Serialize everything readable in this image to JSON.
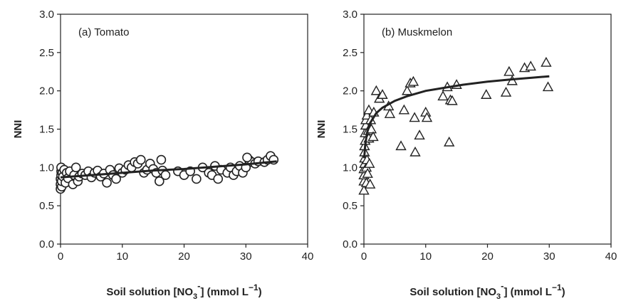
{
  "chart_data": [
    {
      "type": "scatter",
      "panel": "a",
      "annotation": "(a) Tomato",
      "ylabel": "NNI",
      "xlabel": {
        "prefix": "Soil solution [NO",
        "sub": "3",
        "sup": "-",
        "suffix": "] (mmol L",
        "unit_sup": "−1",
        "close": ")"
      },
      "xlim": [
        0,
        40
      ],
      "ylim": [
        0,
        3
      ],
      "xticks": [
        "0",
        "10",
        "20",
        "30",
        "40"
      ],
      "yticks": [
        "0.0",
        "0.5",
        "1.0",
        "1.5",
        "2.0",
        "2.5",
        "3.0"
      ],
      "marker": "circle",
      "trend_line": {
        "x": [
          0,
          5,
          10,
          15,
          20,
          25,
          30,
          35
        ],
        "y": [
          0.87,
          0.9,
          0.93,
          0.96,
          0.98,
          1.01,
          1.04,
          1.08
        ]
      },
      "series": [
        {
          "points": [
            [
              0.0,
              0.72
            ],
            [
              0.0,
              0.78
            ],
            [
              0.0,
              0.85
            ],
            [
              0.1,
              0.9
            ],
            [
              0.1,
              0.95
            ],
            [
              0.1,
              1.0
            ],
            [
              0.2,
              0.75
            ],
            [
              0.2,
              0.82
            ],
            [
              0.3,
              0.93
            ],
            [
              0.4,
              0.88
            ],
            [
              0.6,
              0.97
            ],
            [
              0.8,
              0.8
            ],
            [
              1.0,
              0.93
            ],
            [
              1.2,
              0.86
            ],
            [
              1.5,
              0.95
            ],
            [
              2.0,
              0.78
            ],
            [
              2.2,
              0.9
            ],
            [
              2.5,
              1.0
            ],
            [
              2.8,
              0.82
            ],
            [
              3.0,
              0.88
            ],
            [
              3.5,
              0.92
            ],
            [
              4.0,
              0.9
            ],
            [
              4.5,
              0.95
            ],
            [
              5.0,
              0.87
            ],
            [
              5.5,
              0.93
            ],
            [
              6.0,
              0.96
            ],
            [
              6.5,
              0.88
            ],
            [
              7.0,
              0.92
            ],
            [
              7.5,
              0.8
            ],
            [
              8.0,
              0.97
            ],
            [
              8.5,
              0.9
            ],
            [
              9.0,
              0.85
            ],
            [
              9.5,
              0.99
            ],
            [
              10.0,
              0.93
            ],
            [
              10.5,
              0.97
            ],
            [
              11.0,
              1.03
            ],
            [
              11.5,
              1.0
            ],
            [
              12.0,
              1.07
            ],
            [
              12.5,
              1.05
            ],
            [
              13.0,
              1.1
            ],
            [
              13.5,
              0.93
            ],
            [
              14.0,
              0.97
            ],
            [
              14.5,
              1.05
            ],
            [
              15.0,
              0.98
            ],
            [
              15.5,
              0.93
            ],
            [
              16.0,
              0.82
            ],
            [
              16.3,
              1.1
            ],
            [
              16.5,
              0.96
            ],
            [
              17.0,
              0.9
            ],
            [
              19.0,
              0.95
            ],
            [
              20.0,
              0.9
            ],
            [
              21.0,
              0.95
            ],
            [
              22.0,
              0.85
            ],
            [
              23.0,
              1.0
            ],
            [
              24.0,
              0.93
            ],
            [
              24.5,
              0.9
            ],
            [
              25.0,
              1.02
            ],
            [
              25.5,
              0.85
            ],
            [
              26.0,
              0.97
            ],
            [
              27.0,
              0.93
            ],
            [
              27.5,
              1.0
            ],
            [
              28.0,
              0.9
            ],
            [
              28.5,
              0.95
            ],
            [
              29.0,
              1.02
            ],
            [
              29.5,
              0.93
            ],
            [
              30.0,
              1.0
            ],
            [
              30.5,
              1.1
            ],
            [
              31.0,
              1.07
            ],
            [
              31.5,
              1.05
            ],
            [
              32.0,
              1.08
            ],
            [
              33.0,
              1.07
            ],
            [
              33.5,
              1.1
            ],
            [
              34.0,
              1.15
            ],
            [
              34.5,
              1.1
            ],
            [
              30.2,
              1.13
            ]
          ]
        }
      ]
    },
    {
      "type": "scatter",
      "panel": "b",
      "annotation": "(b) Muskmelon",
      "ylabel": "NNI",
      "xlabel": {
        "prefix": "Soil solution [NO",
        "sub": "3",
        "sup": "-",
        "suffix": "] (mmol L",
        "unit_sup": "−1",
        "close": ")"
      },
      "xlim": [
        0,
        40
      ],
      "ylim": [
        0,
        3
      ],
      "xticks": [
        "0",
        "10",
        "20",
        "30",
        "40"
      ],
      "yticks": [
        "0.0",
        "0.5",
        "1.0",
        "1.5",
        "2.0",
        "2.5",
        "3.0"
      ],
      "marker": "triangle",
      "trend_line": {
        "x": [
          0.05,
          0.2,
          0.5,
          1,
          2,
          3,
          5,
          7,
          10,
          13,
          16,
          20,
          24,
          27,
          30
        ],
        "y": [
          1.12,
          1.28,
          1.45,
          1.58,
          1.71,
          1.78,
          1.87,
          1.93,
          2.0,
          2.04,
          2.08,
          2.12,
          2.15,
          2.17,
          2.19
        ]
      },
      "series": [
        {
          "points": [
            [
              0.0,
              0.7
            ],
            [
              0.0,
              0.82
            ],
            [
              0.0,
              0.9
            ],
            [
              0.0,
              0.98
            ],
            [
              0.1,
              1.05
            ],
            [
              0.1,
              1.12
            ],
            [
              0.1,
              1.2
            ],
            [
              0.1,
              1.28
            ],
            [
              0.2,
              1.35
            ],
            [
              0.2,
              1.45
            ],
            [
              0.3,
              1.55
            ],
            [
              0.3,
              1.62
            ],
            [
              0.4,
              0.8
            ],
            [
              0.4,
              1.0
            ],
            [
              0.5,
              1.1
            ],
            [
              0.5,
              1.68
            ],
            [
              0.6,
              0.92
            ],
            [
              0.7,
              1.48
            ],
            [
              0.8,
              1.75
            ],
            [
              0.8,
              1.38
            ],
            [
              0.9,
              1.05
            ],
            [
              1.0,
              0.78
            ],
            [
              1.1,
              1.62
            ],
            [
              1.2,
              1.5
            ],
            [
              1.5,
              1.4
            ],
            [
              1.6,
              1.72
            ],
            [
              2.0,
              2.0
            ],
            [
              2.5,
              1.9
            ],
            [
              3.0,
              1.95
            ],
            [
              4.0,
              1.8
            ],
            [
              4.2,
              1.7
            ],
            [
              6.0,
              1.28
            ],
            [
              6.5,
              1.75
            ],
            [
              7.0,
              2.0
            ],
            [
              7.5,
              2.1
            ],
            [
              8.0,
              2.12
            ],
            [
              8.2,
              1.65
            ],
            [
              8.3,
              1.2
            ],
            [
              9.0,
              1.42
            ],
            [
              10.0,
              1.72
            ],
            [
              10.2,
              1.65
            ],
            [
              12.8,
              1.93
            ],
            [
              13.5,
              2.05
            ],
            [
              13.8,
              1.33
            ],
            [
              14.0,
              1.88
            ],
            [
              14.3,
              1.87
            ],
            [
              15.0,
              2.08
            ],
            [
              19.8,
              1.95
            ],
            [
              23.0,
              1.98
            ],
            [
              23.5,
              2.25
            ],
            [
              24.0,
              2.13
            ],
            [
              26.0,
              2.3
            ],
            [
              27.0,
              2.32
            ],
            [
              29.5,
              2.37
            ],
            [
              29.8,
              2.05
            ]
          ]
        }
      ]
    }
  ]
}
